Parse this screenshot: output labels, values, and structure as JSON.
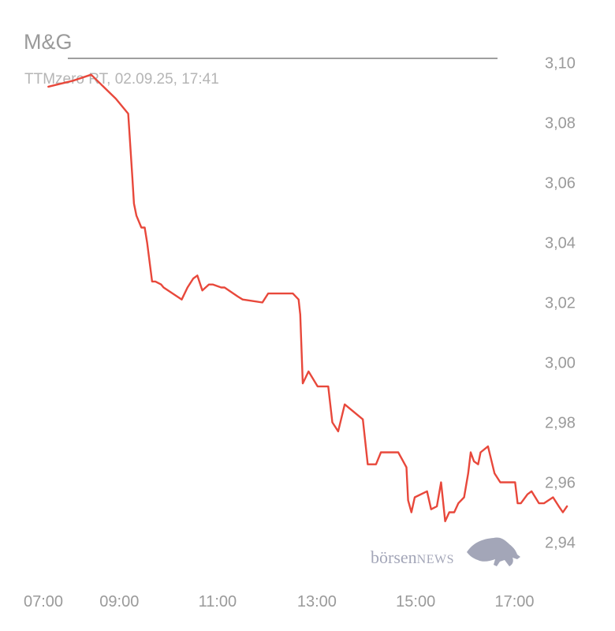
{
  "header": {
    "title": "M&G",
    "subtitle": "TTMzero RT, 02.09.25, 17:41"
  },
  "watermark": {
    "brand_text_lower": "börsen",
    "brand_text_upper": "NEWS",
    "icon": "bull-icon"
  },
  "colors": {
    "line": "#e8483b",
    "axis_text": "#9a9a9a",
    "title_rule": "#666666",
    "watermark": "#a3a6b8"
  },
  "chart_data": {
    "type": "line",
    "title": "M&G",
    "subtitle": "TTMzero RT, 02.09.25, 17:41",
    "xlabel": "",
    "ylabel": "",
    "x_ticks": [
      "07:00",
      "09:00",
      "11:00",
      "13:00",
      "15:00",
      "17:00"
    ],
    "y_ticks": [
      "3,10",
      "3,08",
      "3,06",
      "3,04",
      "3,02",
      "3,00",
      "2,98",
      "2,96",
      "2,94"
    ],
    "y_tick_values": [
      3.1,
      3.08,
      3.06,
      3.04,
      3.02,
      3.0,
      2.98,
      2.96,
      2.94
    ],
    "ylim": [
      2.9335,
      3.1035
    ],
    "xlim": [
      "07:00",
      "18:20"
    ],
    "grid": false,
    "y_axis_side": "right",
    "series": [
      {
        "x": [
          "07:30",
          "08:00",
          "08:22",
          "08:52",
          "09:07",
          "09:12",
          "09:14",
          "09:17",
          "09:23",
          "09:27",
          "09:30",
          "09:36",
          "09:40",
          "09:47",
          "09:50",
          "10:12",
          "10:19",
          "10:26",
          "10:31",
          "10:37",
          "10:45",
          "10:50",
          "11:00",
          "11:04",
          "11:20",
          "11:26",
          "11:50",
          "11:57",
          "12:05",
          "12:09",
          "12:11",
          "12:14",
          "12:17",
          "12:23",
          "12:27",
          "12:34",
          "12:36",
          "12:39",
          "12:46",
          "12:57",
          "13:10",
          "13:15",
          "13:22",
          "13:30",
          "13:52",
          "13:58",
          "14:08",
          "14:14",
          "14:21",
          "14:27",
          "14:35",
          "14:45",
          "14:47",
          "14:51",
          "14:55",
          "15:10",
          "15:15",
          "15:22",
          "15:27",
          "15:32",
          "15:37",
          "15:43",
          "15:48",
          "15:55",
          "16:00",
          "16:03",
          "16:07",
          "16:12",
          "16:15",
          "16:24",
          "16:32",
          "16:39",
          "16:57",
          "17:00",
          "17:04",
          "17:12",
          "17:17",
          "17:26",
          "17:32",
          "17:43",
          "17:50",
          "17:55",
          "18:00"
        ],
        "values": [
          3.092,
          3.094,
          3.096,
          3.088,
          3.083,
          3.062,
          3.053,
          3.049,
          3.045,
          3.045,
          3.04,
          3.027,
          3.027,
          3.026,
          3.025,
          3.021,
          3.025,
          3.028,
          3.029,
          3.024,
          3.026,
          3.026,
          3.025,
          3.025,
          3.022,
          3.021,
          3.02,
          3.023,
          3.023,
          3.023,
          3.023,
          3.023,
          3.023,
          3.023,
          3.023,
          3.021,
          3.016,
          2.993,
          2.997,
          2.992,
          2.992,
          2.98,
          2.977,
          2.986,
          2.981,
          2.966,
          2.966,
          2.97,
          2.97,
          2.97,
          2.97,
          2.965,
          2.954,
          2.95,
          2.955,
          2.957,
          2.951,
          2.952,
          2.96,
          2.947,
          2.95,
          2.95,
          2.953,
          2.955,
          2.963,
          2.97,
          2.967,
          2.966,
          2.97,
          2.972,
          2.963,
          2.96,
          2.96,
          2.953,
          2.953,
          2.956,
          2.957,
          2.953,
          2.953,
          2.955,
          2.952,
          2.95,
          2.952
        ]
      }
    ]
  }
}
